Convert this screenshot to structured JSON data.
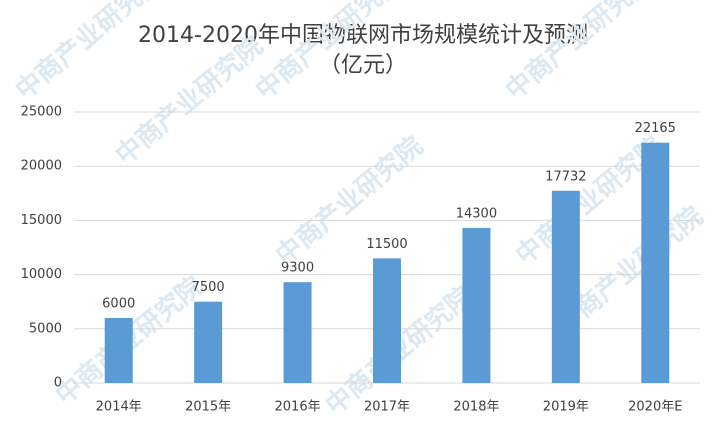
{
  "chart_data": {
    "type": "bar",
    "title": "2014-2020年中国物联网市场规模统计及预测",
    "subtitle": "（亿元）",
    "watermark": "中商产业研究院",
    "categories": [
      "2014年",
      "2015年",
      "2016年",
      "2017年",
      "2018年",
      "2019年",
      "2020年E"
    ],
    "values": [
      6000,
      7500,
      9300,
      11500,
      14300,
      17732,
      22165
    ],
    "color": "#5b9bd5",
    "ylim": [
      0,
      25000
    ],
    "yticks": [
      0,
      5000,
      10000,
      15000,
      20000,
      25000
    ],
    "grid": true
  }
}
